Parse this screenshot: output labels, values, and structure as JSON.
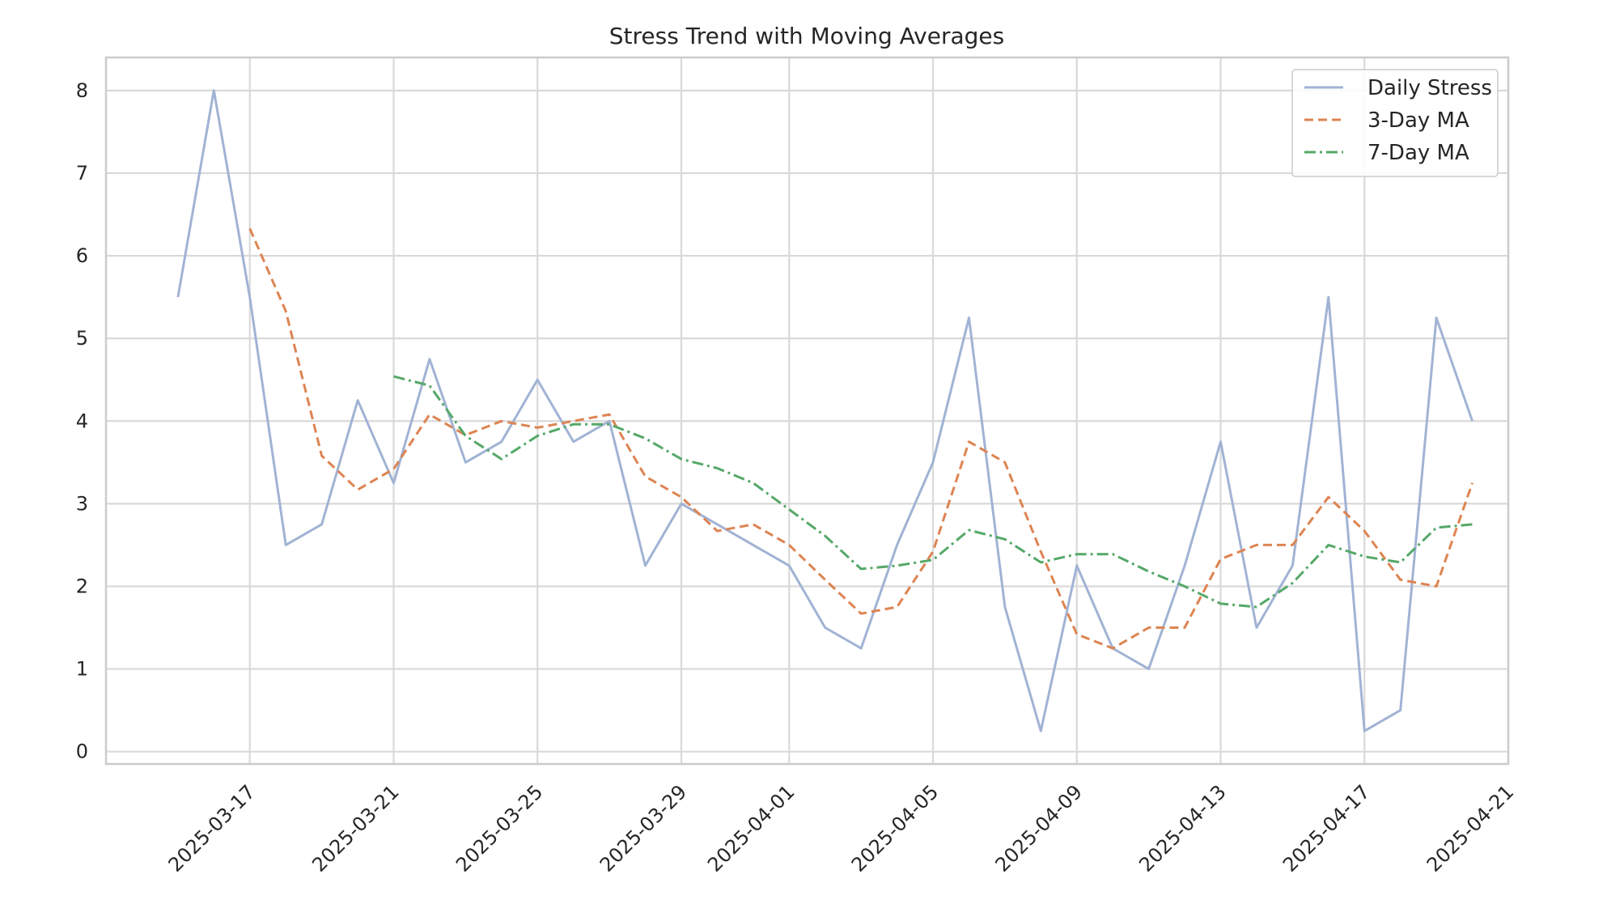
{
  "chart_data": {
    "type": "line",
    "title": "Stress Trend with Moving Averages",
    "xlabel": "",
    "ylabel": "",
    "x": [
      "2025-03-15",
      "2025-03-16",
      "2025-03-17",
      "2025-03-18",
      "2025-03-19",
      "2025-03-20",
      "2025-03-21",
      "2025-03-22",
      "2025-03-23",
      "2025-03-24",
      "2025-03-25",
      "2025-03-26",
      "2025-03-27",
      "2025-03-28",
      "2025-03-29",
      "2025-03-30",
      "2025-03-31",
      "2025-04-01",
      "2025-04-02",
      "2025-04-03",
      "2025-04-04",
      "2025-04-05",
      "2025-04-06",
      "2025-04-07",
      "2025-04-08",
      "2025-04-09",
      "2025-04-10",
      "2025-04-11",
      "2025-04-12",
      "2025-04-13",
      "2025-04-14",
      "2025-04-15",
      "2025-04-16",
      "2025-04-17",
      "2025-04-18",
      "2025-04-19",
      "2025-04-20"
    ],
    "xlim": [
      "2025-03-13",
      "2025-04-21"
    ],
    "ylim": [
      -0.15,
      8.4
    ],
    "x_ticks": [
      "2025-03-17",
      "2025-03-21",
      "2025-03-25",
      "2025-03-29",
      "2025-04-01",
      "2025-04-05",
      "2025-04-09",
      "2025-04-13",
      "2025-04-17",
      "2025-04-21"
    ],
    "y_ticks": [
      0,
      1,
      2,
      3,
      4,
      5,
      6,
      7,
      8
    ],
    "grid": true,
    "legend": "top-right",
    "series": [
      {
        "name": "Daily Stress",
        "color": "#a1b3d4",
        "dash": "solid",
        "values": [
          5.5,
          8.0,
          5.5,
          2.5,
          2.75,
          4.25,
          3.25,
          4.75,
          3.5,
          3.75,
          4.5,
          3.75,
          4.0,
          2.25,
          3.0,
          2.75,
          2.5,
          2.25,
          1.5,
          1.25,
          2.5,
          3.5,
          5.25,
          1.75,
          0.25,
          2.25,
          1.25,
          1.0,
          2.25,
          3.75,
          1.5,
          2.25,
          5.5,
          0.25,
          0.5,
          5.25,
          4.0
        ]
      },
      {
        "name": "3-Day MA",
        "color": "#dd8452",
        "dash": "dashed",
        "values": [
          null,
          null,
          6.33,
          5.33,
          3.58,
          3.17,
          3.42,
          4.08,
          3.83,
          4.0,
          3.92,
          4.0,
          4.08,
          3.33,
          3.08,
          2.67,
          2.75,
          2.5,
          2.08,
          1.67,
          1.75,
          2.42,
          3.75,
          3.5,
          2.42,
          1.42,
          1.25,
          1.5,
          1.5,
          2.33,
          2.5,
          2.5,
          3.08,
          2.67,
          2.08,
          2.0,
          3.25
        ]
      },
      {
        "name": "7-Day MA",
        "color": "#55a868",
        "dash": "dashdot",
        "values": [
          null,
          null,
          null,
          null,
          null,
          null,
          4.54,
          4.43,
          3.82,
          3.54,
          3.82,
          3.96,
          3.96,
          3.79,
          3.54,
          3.43,
          3.25,
          2.93,
          2.61,
          2.21,
          2.25,
          2.32,
          2.68,
          2.57,
          2.29,
          2.39,
          2.39,
          2.18,
          2.0,
          1.79,
          1.75,
          2.04,
          2.5,
          2.36,
          2.29,
          2.71,
          2.75
        ]
      }
    ]
  }
}
